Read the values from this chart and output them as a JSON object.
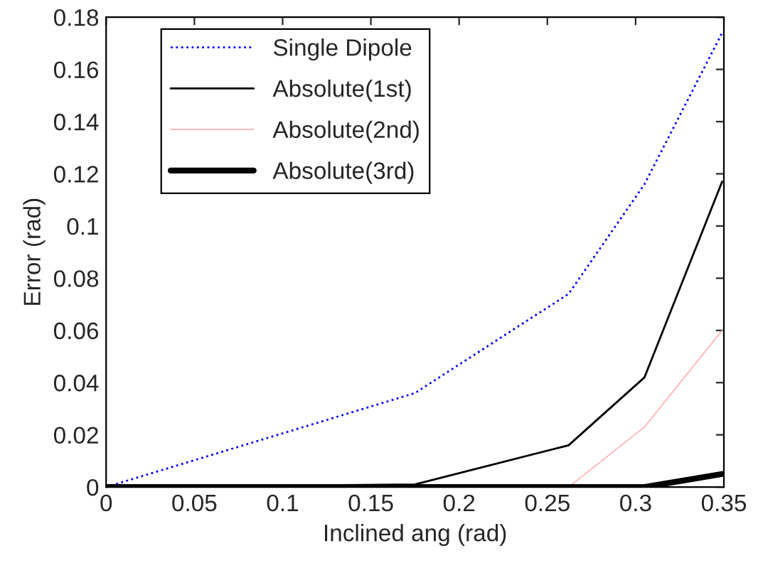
{
  "chart_data": {
    "type": "line",
    "xlabel": "Inclined ang (rad)",
    "ylabel": "Error (rad)",
    "x": [
      0,
      0.175,
      0.262,
      0.305,
      0.349
    ],
    "series": [
      {
        "name": "Single Dipole",
        "color": "#0000ff",
        "line_style": "dotted",
        "values": [
          0,
          0.036,
          0.074,
          0.116,
          0.174
        ]
      },
      {
        "name": "Absolute(1st)",
        "color": "#000000",
        "line_style": "solid",
        "values": [
          0,
          0.001,
          0.016,
          0.042,
          0.117
        ]
      },
      {
        "name": "Absolute(2nd)",
        "color": "#ffb0b0",
        "line_style": "solid",
        "values": [
          null,
          null,
          0,
          0.023,
          0.06
        ]
      },
      {
        "name": "Absolute(3rd)",
        "color": "#000000",
        "line_style": "solid",
        "values": [
          0,
          0,
          0,
          0,
          0.005
        ]
      }
    ],
    "xlim": [
      0,
      0.35
    ],
    "xticks": [
      0,
      0.05,
      0.1,
      0.15,
      0.2,
      0.25,
      0.3,
      0.35
    ],
    "ylim": [
      0,
      0.18
    ],
    "yticks": [
      0,
      0.02,
      0.04,
      0.06,
      0.08,
      0.1,
      0.12,
      0.14,
      0.16,
      0.18
    ],
    "legend": "top left",
    "grid": false,
    "marker": "none"
  }
}
